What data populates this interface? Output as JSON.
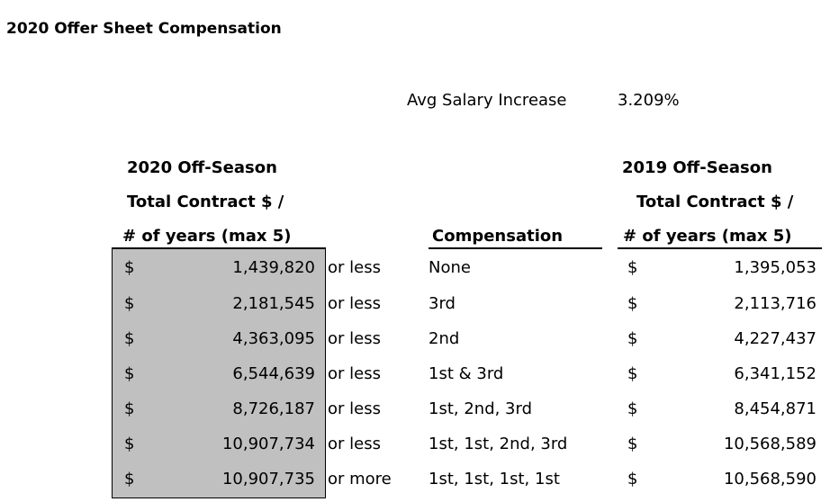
{
  "title": "2020 Offer Sheet Compensation",
  "avg_salary": {
    "label": "Avg Salary Increase",
    "value": "3.209%"
  },
  "headers": {
    "col2020": [
      "2020 Off-Season",
      "Total Contract $ /",
      "# of years (max 5)"
    ],
    "compensation": "Compensation",
    "col2019": [
      "2019 Off-Season",
      "Total Contract $ /",
      "# of years (max 5)"
    ]
  },
  "currency_symbol": "$",
  "rows": [
    {
      "amount_2020": "1,439,820",
      "condition": "or less",
      "compensation": "None",
      "amount_2019": "1,395,053"
    },
    {
      "amount_2020": "2,181,545",
      "condition": "or less",
      "compensation": "3rd",
      "amount_2019": "2,113,716"
    },
    {
      "amount_2020": "4,363,095",
      "condition": "or less",
      "compensation": "2nd",
      "amount_2019": "4,227,437"
    },
    {
      "amount_2020": "6,544,639",
      "condition": "or less",
      "compensation": "1st & 3rd",
      "amount_2019": "6,341,152"
    },
    {
      "amount_2020": "8,726,187",
      "condition": "or less",
      "compensation": "1st, 2nd, 3rd",
      "amount_2019": "8,454,871"
    },
    {
      "amount_2020": "10,907,734",
      "condition": "or less",
      "compensation": "1st, 1st, 2nd, 3rd",
      "amount_2019": "10,568,589"
    },
    {
      "amount_2020": "10,907,735",
      "condition": "or more",
      "compensation": "1st, 1st, 1st, 1st",
      "amount_2019": "10,568,590"
    }
  ]
}
